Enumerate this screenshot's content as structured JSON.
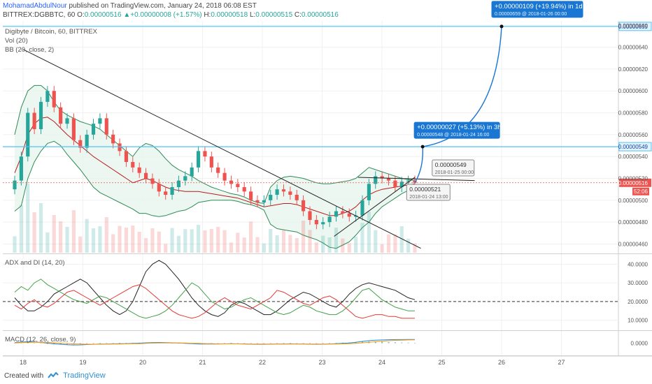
{
  "header": {
    "author": "MohamadAbdulNour",
    "published": " published on TradingView.com, January 24, 2018 06:08 EST",
    "symbol": "BITTREX:DGBBTC, 60",
    "o_label": "O:",
    "o": "0.00000516",
    "change": "+0.00000008 (+1.57%)",
    "h_label": "H:",
    "h": "0.00000518",
    "l_label": "L:",
    "l": "0.00000515",
    "c_label": "C:",
    "c": "0.00000516"
  },
  "legend": {
    "title": "Digibyte / Bitcoin, 60, BITTREX",
    "vol": "Vol (20)",
    "bb": "BB (20, close, 2)",
    "adx": "ADX and DI (14, 20)",
    "macd": "MACD (12, 26, close, 9)"
  },
  "footer": {
    "created_with": "Created with",
    "brand": "TradingView"
  },
  "chart_data": {
    "type": "line",
    "main": {
      "series": "Digibyte / Bitcoin (candlestick, hourly close)",
      "x_ticks": [
        "18",
        "19",
        "20",
        "21",
        "22",
        "23",
        "24",
        "25",
        "26",
        "27"
      ],
      "y_ticks": [
        "0.00000660",
        "0.00000640",
        "0.00000620",
        "0.00000600",
        "0.00000580",
        "0.00000560",
        "0.00000540",
        "0.00000520",
        "0.00000500",
        "0.00000480",
        "0.00000460"
      ],
      "y_range": [
        4.52e-06,
        6.64e-06
      ],
      "close": [
        5.18e-06,
        5.4e-06,
        5.8e-06,
        5.65e-06,
        5.9e-06,
        6e-06,
        5.85e-06,
        5.7e-06,
        5.75e-06,
        5.55e-06,
        5.48e-06,
        5.6e-06,
        5.7e-06,
        5.75e-06,
        5.6e-06,
        5.52e-06,
        5.45e-06,
        5.35e-06,
        5.3e-06,
        5.25e-06,
        5.2e-06,
        5.15e-06,
        5.08e-06,
        5.05e-06,
        5.12e-06,
        5.18e-06,
        5.22e-06,
        5.3e-06,
        5.45e-06,
        5.4e-06,
        5.3e-06,
        5.25e-06,
        5.18e-06,
        5.15e-06,
        5.12e-06,
        5.08e-06,
        5e-06,
        4.98e-06,
        5e-06,
        5.05e-06,
        5.1e-06,
        5.08e-06,
        5.05e-06,
        5e-06,
        4.9e-06,
        4.82e-06,
        4.78e-06,
        4.8e-06,
        4.85e-06,
        4.9e-06,
        4.88e-06,
        4.85e-06,
        4.86e-06,
        5e-06,
        5.15e-06,
        5.22e-06,
        5.2e-06,
        5.18e-06,
        5.12e-06,
        5.17e-06,
        5.18e-06,
        5.16e-06
      ],
      "bb_upper": [
        5.6e-06,
        5.85e-06,
        6e-06,
        6.05e-06,
        6.05e-06,
        6e-06,
        5.9e-06,
        5.82e-06,
        5.78e-06,
        5.75e-06,
        5.72e-06,
        5.7e-06,
        5.68e-06,
        5.65e-06,
        5.6e-06,
        5.55e-06,
        5.5e-06,
        5.45e-06,
        5.4e-06,
        5.48e-06,
        5.52e-06,
        5.5e-06,
        5.45e-06,
        5.38e-06,
        5.32e-06,
        5.28e-06,
        5.25e-06,
        5.22e-06,
        5.18e-06,
        5.15e-06,
        5.12e-06,
        5.1e-06,
        5.08e-06,
        5.06e-06,
        5.05e-06,
        5.03e-06,
        5e-06,
        4.98e-06,
        4.97e-06,
        5.12e-06,
        5.18e-06,
        5.21e-06,
        5.22e-06,
        5.21e-06,
        5.2e-06,
        5.18e-06,
        5.16e-06,
        5.15e-06,
        5.15e-06,
        5.16e-06,
        5.17e-06,
        5.18e-06,
        5.2e-06,
        5.25e-06,
        5.3e-06,
        5.28e-06,
        5.26e-06,
        5.24e-06,
        5.22e-06,
        5.2e-06,
        5.19e-06,
        5.18e-06
      ],
      "bb_basis": [
        5.25e-06,
        5.4e-06,
        5.6e-06,
        5.7e-06,
        5.75e-06,
        5.76e-06,
        5.72e-06,
        5.66e-06,
        5.6e-06,
        5.55e-06,
        5.5e-06,
        5.45e-06,
        5.4e-06,
        5.36e-06,
        5.32e-06,
        5.28e-06,
        5.24e-06,
        5.2e-06,
        5.16e-06,
        5.18e-06,
        5.2e-06,
        5.18e-06,
        5.15e-06,
        5.12e-06,
        5.1e-06,
        5.09e-06,
        5.08e-06,
        5.08e-06,
        5.08e-06,
        5.07e-06,
        5.06e-06,
        5.05e-06,
        5.04e-06,
        5.03e-06,
        5.02e-06,
        5e-06,
        4.98e-06,
        4.96e-06,
        4.94e-06,
        4.95e-06,
        4.96e-06,
        4.97e-06,
        4.97e-06,
        4.96e-06,
        4.94e-06,
        4.92e-06,
        4.9e-06,
        4.88e-06,
        4.86e-06,
        4.86e-06,
        4.88e-06,
        4.9e-06,
        4.94e-06,
        5e-06,
        5.05e-06,
        5.08e-06,
        5.1e-06,
        5.11e-06,
        5.12e-06,
        5.13e-06,
        5.14e-06,
        5.15e-06
      ],
      "bb_lower": [
        4.9e-06,
        4.95e-06,
        5.2e-06,
        5.35e-06,
        5.45e-06,
        5.52e-06,
        5.54e-06,
        5.5e-06,
        5.42e-06,
        5.35e-06,
        5.28e-06,
        5.2e-06,
        5.12e-06,
        5.07e-06,
        5.04e-06,
        5.01e-06,
        4.98e-06,
        4.95e-06,
        4.92e-06,
        4.88e-06,
        4.88e-06,
        4.86e-06,
        4.85e-06,
        4.86e-06,
        4.88e-06,
        4.9e-06,
        4.91e-06,
        4.94e-06,
        4.98e-06,
        4.99e-06,
        5e-06,
        5e-06,
        5e-06,
        5e-06,
        4.99e-06,
        4.97e-06,
        4.96e-06,
        4.94e-06,
        4.91e-06,
        4.78e-06,
        4.74e-06,
        4.73e-06,
        4.72e-06,
        4.71e-06,
        4.68e-06,
        4.66e-06,
        4.64e-06,
        4.61e-06,
        4.57e-06,
        4.56e-06,
        4.59e-06,
        4.62e-06,
        4.68e-06,
        4.75e-06,
        4.8e-06,
        4.88e-06,
        4.94e-06,
        4.98e-06,
        5.02e-06,
        5.06e-06,
        5.09e-06,
        5.12e-06
      ],
      "horizontal_levels": [
        {
          "value": 6.59e-06,
          "label": "0.00000659"
        },
        {
          "value": 5.49e-06,
          "label": "0.00000549"
        }
      ],
      "last_price": {
        "value": 5.16e-06,
        "label": "0.00000516",
        "countdown": "52:06"
      },
      "trendlines": [
        {
          "from": [
            0.0,
            6.38e-06
          ],
          "to": [
            6.65,
            4.56e-06
          ]
        },
        {
          "from": [
            5.2,
            4.67e-06
          ],
          "to": [
            6.55,
            5.21e-06
          ]
        },
        {
          "from": [
            5.6,
            5.21e-06
          ],
          "to": [
            7.55,
            5.18e-06
          ]
        }
      ],
      "annotations": [
        {
          "title": "+0.00000109 (+19.94%) in 1d",
          "sub": "0.00000659 @ 2018-01-26 00:00",
          "x": 8.0,
          "y": 6.59e-06
        },
        {
          "title": "+0.00000027 (+5.13%) in 3h",
          "sub": "0.00000548 @ 2018-01-24 16:00",
          "x": 6.68,
          "y": 5.49e-06
        },
        {
          "title": "0.00000549",
          "sub": "2018-01-25 00:00",
          "x": 6.98,
          "y": 5.35e-06
        },
        {
          "title": "0.00000521",
          "sub": "2018-01-24 13:00",
          "x": 6.6,
          "y": 5.21e-06
        }
      ]
    },
    "adx": {
      "y_ticks": [
        "40.0000",
        "30.0000",
        "20.0000",
        "10.0000"
      ],
      "y_range": [
        5,
        45
      ],
      "threshold": 20,
      "adx": [
        22,
        18,
        15,
        15,
        17,
        20,
        24,
        26,
        28,
        30,
        32,
        30,
        26,
        22,
        18,
        15,
        13,
        15,
        20,
        28,
        36,
        40,
        42,
        40,
        36,
        32,
        27,
        22,
        18,
        15,
        13,
        12,
        14,
        18,
        20,
        19,
        17,
        15,
        13,
        13,
        15,
        18,
        21,
        23,
        25,
        24,
        22,
        20,
        18,
        17,
        20,
        24,
        27,
        29,
        30,
        29,
        28,
        27,
        26,
        24,
        22,
        21
      ],
      "di_plus": [
        25,
        28,
        26,
        30,
        32,
        29,
        27,
        25,
        23,
        21,
        20,
        19,
        21,
        23,
        22,
        20,
        18,
        16,
        14,
        12,
        11,
        12,
        13,
        15,
        18,
        22,
        26,
        30,
        28,
        24,
        20,
        18,
        16,
        17,
        19,
        21,
        22,
        20,
        18,
        16,
        14,
        13,
        14,
        16,
        18,
        17,
        15,
        14,
        13,
        13,
        15,
        18,
        22,
        26,
        27,
        24,
        21,
        19,
        17,
        16,
        15,
        15
      ],
      "di_minus": [
        18,
        16,
        19,
        21,
        18,
        17,
        19,
        22,
        25,
        26,
        24,
        22,
        20,
        18,
        20,
        22,
        24,
        26,
        28,
        29,
        27,
        24,
        21,
        18,
        15,
        13,
        12,
        11,
        12,
        14,
        17,
        20,
        22,
        20,
        18,
        17,
        16,
        18,
        20,
        22,
        26,
        25,
        23,
        21,
        19,
        18,
        20,
        22,
        23,
        21,
        18,
        15,
        12,
        11,
        12,
        13,
        13,
        12,
        12,
        11,
        11,
        11
      ]
    },
    "macd": {
      "y_ticks": [
        "0.0000"
      ],
      "y_range": [
        -1,
        1
      ],
      "macd": [
        0.05,
        0.1,
        0.12,
        0.1,
        0.06,
        0.0,
        -0.06,
        -0.1,
        -0.14,
        -0.16,
        -0.15,
        -0.12,
        -0.1,
        -0.08,
        -0.07,
        -0.06,
        -0.05,
        -0.04,
        -0.02,
        0.0,
        0.03,
        0.05,
        0.06,
        0.05,
        0.03,
        0.01,
        -0.02,
        -0.05,
        -0.07,
        -0.08,
        -0.08,
        -0.07,
        -0.06,
        -0.05,
        -0.06,
        -0.07,
        -0.09,
        -0.1,
        -0.1,
        -0.09,
        -0.08,
        -0.07,
        -0.06,
        -0.07,
        -0.08,
        -0.09,
        -0.1,
        -0.09,
        -0.07,
        -0.05,
        -0.02,
        0.02,
        0.08,
        0.15,
        0.22,
        0.26,
        0.28,
        0.3,
        0.31,
        0.31,
        0.32,
        0.32
      ],
      "signal": [
        0.02,
        0.04,
        0.06,
        0.08,
        0.08,
        0.06,
        0.03,
        0.0,
        -0.03,
        -0.06,
        -0.08,
        -0.09,
        -0.1,
        -0.1,
        -0.09,
        -0.08,
        -0.07,
        -0.06,
        -0.05,
        -0.04,
        -0.02,
        0.0,
        0.01,
        0.02,
        0.02,
        0.02,
        0.01,
        -0.01,
        -0.02,
        -0.04,
        -0.05,
        -0.06,
        -0.06,
        -0.06,
        -0.06,
        -0.06,
        -0.07,
        -0.07,
        -0.08,
        -0.08,
        -0.08,
        -0.08,
        -0.07,
        -0.07,
        -0.07,
        -0.08,
        -0.08,
        -0.08,
        -0.08,
        -0.07,
        -0.06,
        -0.04,
        -0.01,
        0.03,
        0.08,
        0.13,
        0.17,
        0.21,
        0.24,
        0.26,
        0.28,
        0.29
      ]
    }
  },
  "colors": {
    "up": "#26a69a",
    "down": "#ef5350",
    "bb_fill": "#e8f5ee",
    "bb_band": "#2e8b57",
    "bb_basis": "#b71c1c",
    "level": "#4fc3f7",
    "annot": "#1976d2",
    "adx": "#222222",
    "di_plus": "#43a047",
    "di_minus": "#e53935",
    "macd": "#1e88e5",
    "signal": "#ff9800"
  }
}
